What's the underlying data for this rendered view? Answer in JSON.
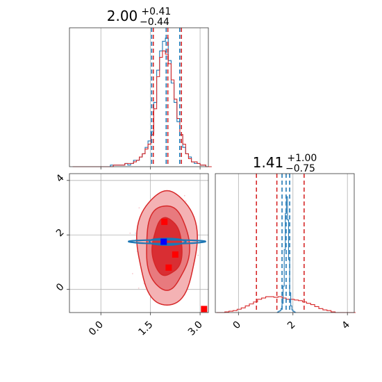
{
  "chart_data": [
    {
      "type": "histogram",
      "panel": "top-left",
      "title": {
        "main": "2.00",
        "sup": "+0.41",
        "sub": "−0.44"
      },
      "xlim": [
        -0.95,
        3.25
      ],
      "grid": true,
      "quantile_lines": [
        1.56,
        2.0,
        2.41
      ],
      "bin_start": -0.85,
      "bin_width": 0.0875,
      "series": [
        {
          "name": "",
          "color": "#1f77b4",
          "counts": [
            0,
            0,
            0,
            0,
            0,
            0,
            0,
            0,
            0,
            0,
            0,
            0,
            0,
            1,
            1,
            1,
            1,
            1,
            2,
            1,
            2,
            4,
            4,
            6,
            8,
            12,
            16,
            22,
            40,
            60,
            72,
            78,
            80,
            66,
            52,
            40,
            28,
            20,
            12,
            8,
            6,
            3,
            2,
            2,
            1,
            1,
            0,
            0
          ]
        },
        {
          "name": "",
          "color": "#d62728",
          "counts": [
            0,
            0,
            0,
            0,
            0,
            0,
            0,
            0,
            0,
            0,
            0,
            0,
            0,
            0,
            1,
            1,
            1,
            1,
            2,
            2,
            2,
            3,
            4,
            6,
            8,
            11,
            14,
            20,
            36,
            56,
            68,
            72,
            70,
            64,
            54,
            42,
            30,
            20,
            14,
            8,
            5,
            3,
            3,
            2,
            1,
            1,
            0,
            0
          ]
        }
      ]
    },
    {
      "type": "contour",
      "panel": "bottom-left",
      "xlim": [
        -0.95,
        3.25
      ],
      "ylim": [
        -0.85,
        4.25
      ],
      "xticks": [
        "0.0",
        "1.5",
        "3.0"
      ],
      "yticks": [
        "0",
        "2",
        "4"
      ],
      "grid": true,
      "red_center": [
        2.0,
        1.55
      ],
      "red_levels": [
        {
          "rx": 0.9,
          "ry": 2.1
        },
        {
          "rx": 0.65,
          "ry": 1.55
        },
        {
          "rx": 0.45,
          "ry": 1.05
        }
      ],
      "blue_center": [
        2.0,
        1.75
      ],
      "blue_levels": [
        {
          "rx": 1.15,
          "ry": 0.07
        },
        {
          "rx": 0.55,
          "ry": 0.12
        }
      ],
      "markers": [
        {
          "x": 1.92,
          "y": 2.48,
          "color": "#ff0000"
        },
        {
          "x": 1.9,
          "y": 1.75,
          "color": "#0000ff"
        },
        {
          "x": 2.25,
          "y": 1.28,
          "color": "#ff0000"
        },
        {
          "x": 2.05,
          "y": 0.8,
          "color": "#ff0000"
        },
        {
          "x": 3.12,
          "y": -0.72,
          "color": "#ff0000"
        }
      ]
    },
    {
      "type": "histogram",
      "panel": "bottom-right",
      "title": {
        "main": "1.41",
        "sup": "+1.00",
        "sub": "−0.75"
      },
      "xlim": [
        -0.85,
        4.25
      ],
      "xticks": [
        "0",
        "2",
        "4"
      ],
      "grid": true,
      "blue_quantile_lines": [
        1.6,
        1.75,
        1.88
      ],
      "red_quantile_lines": [
        0.66,
        1.41,
        2.41
      ],
      "blue_bin_start": 1.4,
      "blue_bin_width": 0.04,
      "blue_counts": [
        0,
        1,
        2,
        3,
        6,
        14,
        40,
        95,
        150,
        175,
        140,
        80,
        30,
        10,
        4,
        2,
        1,
        0
      ],
      "red_bin_start": -0.8,
      "red_bin_width": 0.15,
      "red_counts": [
        0,
        0,
        1,
        2,
        3,
        5,
        7,
        10,
        13,
        16,
        20,
        22,
        24,
        24,
        23,
        24,
        22,
        20,
        20,
        19,
        18,
        16,
        14,
        12,
        9,
        6,
        4,
        3,
        1,
        0,
        0,
        0,
        0,
        0
      ]
    }
  ]
}
